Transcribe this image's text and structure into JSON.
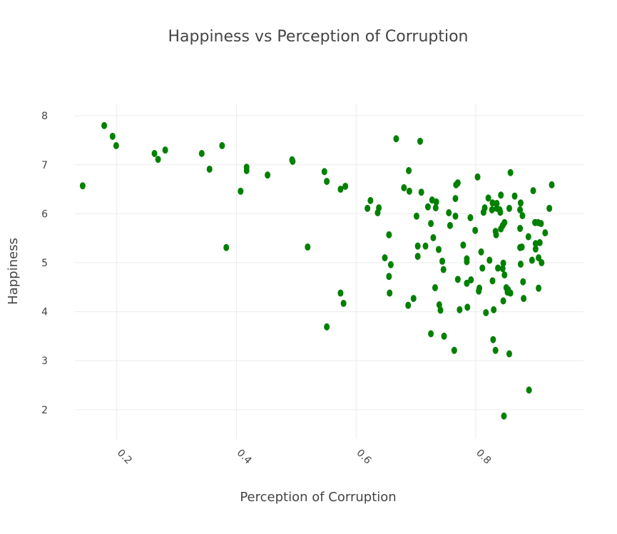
{
  "chart_data": {
    "type": "scatter",
    "title": "Happiness vs Perception of Corruption",
    "x_label": "Perception of Corruption",
    "y_label": "Happiness",
    "color": "#008000",
    "grid": true,
    "xlim": [
      0.13,
      0.98
    ],
    "ylim": [
      1.4,
      8.25
    ],
    "xticks": [
      0.2,
      0.4,
      0.6,
      0.8
    ],
    "yticks": [
      2,
      3,
      4,
      5,
      6,
      7,
      8
    ],
    "x": [
      0.143,
      0.179,
      0.193,
      0.199,
      0.263,
      0.269,
      0.281,
      0.342,
      0.355,
      0.376,
      0.383,
      0.407,
      0.417,
      0.417,
      0.452,
      0.493,
      0.494,
      0.519,
      0.547,
      0.551,
      0.551,
      0.574,
      0.582,
      0.574,
      0.579,
      0.619,
      0.624,
      0.636,
      0.638,
      0.648,
      0.655,
      0.658,
      0.655,
      0.656,
      0.667,
      0.68,
      0.688,
      0.689,
      0.687,
      0.696,
      0.701,
      0.703,
      0.707,
      0.709,
      0.703,
      0.716,
      0.72,
      0.725,
      0.727,
      0.725,
      0.729,
      0.734,
      0.733,
      0.732,
      0.738,
      0.739,
      0.741,
      0.744,
      0.746,
      0.747,
      0.755,
      0.757,
      0.764,
      0.766,
      0.767,
      0.77,
      0.766,
      0.77,
      0.773,
      0.779,
      0.785,
      0.785,
      0.785,
      0.786,
      0.791,
      0.792,
      0.799,
      0.803,
      0.805,
      0.806,
      0.809,
      0.811,
      0.813,
      0.815,
      0.817,
      0.821,
      0.823,
      0.827,
      0.828,
      0.829,
      0.828,
      0.83,
      0.833,
      0.834,
      0.833,
      0.835,
      0.835,
      0.837,
      0.84,
      0.842,
      0.841,
      0.842,
      0.845,
      0.845,
      0.846,
      0.846,
      0.847,
      0.848,
      0.848,
      0.851,
      0.853,
      0.854,
      0.856,
      0.858,
      0.856,
      0.858,
      0.865,
      0.874,
      0.874,
      0.875,
      0.874,
      0.877,
      0.878,
      0.875,
      0.879,
      0.88,
      0.888,
      0.889,
      0.894,
      0.896,
      0.899,
      0.9,
      0.9,
      0.904,
      0.905,
      0.905,
      0.907,
      0.909,
      0.91,
      0.916,
      0.923,
      0.927
    ],
    "y": [
      6.57,
      7.8,
      7.58,
      7.39,
      7.23,
      7.11,
      7.3,
      7.23,
      6.91,
      7.39,
      5.31,
      6.46,
      6.95,
      6.88,
      6.79,
      7.1,
      7.07,
      5.32,
      6.86,
      6.66,
      3.69,
      6.5,
      6.56,
      4.38,
      4.17,
      6.11,
      6.27,
      6.02,
      6.12,
      5.1,
      5.57,
      4.96,
      4.72,
      4.38,
      7.53,
      6.53,
      6.88,
      6.46,
      4.13,
      4.27,
      5.95,
      5.34,
      7.48,
      6.44,
      5.13,
      5.34,
      6.14,
      3.55,
      6.28,
      5.8,
      5.51,
      6.24,
      6.12,
      4.49,
      5.27,
      4.14,
      4.03,
      5.03,
      4.86,
      3.5,
      6.02,
      5.76,
      3.21,
      6.31,
      6.59,
      6.63,
      5.95,
      4.66,
      4.04,
      5.36,
      5.02,
      5.08,
      4.58,
      4.09,
      5.92,
      4.65,
      5.66,
      6.75,
      4.42,
      4.48,
      5.22,
      4.89,
      6.03,
      6.12,
      3.98,
      6.32,
      5.05,
      6.08,
      6.22,
      3.43,
      4.63,
      4.04,
      3.21,
      5.57,
      5.64,
      6.21,
      6.11,
      4.89,
      6.08,
      6.38,
      6.03,
      5.69,
      5.76,
      4.88,
      4.99,
      4.22,
      1.87,
      5.82,
      4.75,
      4.49,
      4.4,
      4.45,
      6.11,
      6.84,
      3.14,
      4.38,
      6.36,
      5.7,
      6.08,
      4.97,
      5.31,
      5.32,
      5.96,
      6.22,
      4.61,
      4.27,
      5.53,
      2.4,
      5.05,
      6.47,
      5.82,
      5.28,
      5.39,
      5.82,
      4.48,
      5.1,
      5.41,
      5.8,
      5.0,
      5.61,
      6.11,
      6.59
    ]
  }
}
